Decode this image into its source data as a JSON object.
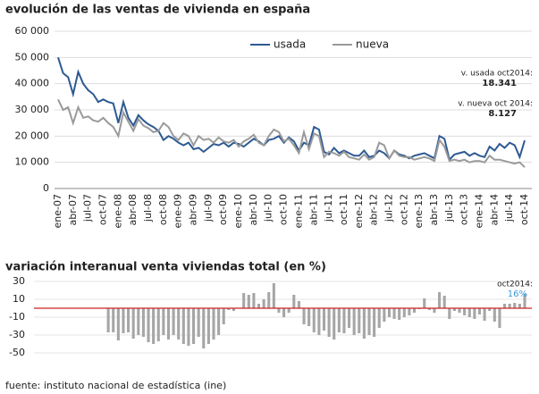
{
  "chart_data": [
    {
      "type": "line",
      "title": "evolución de las ventas de vivienda en españa",
      "categories": [
        "ene-07",
        null,
        null,
        "abr-07",
        null,
        null,
        "jul-07",
        null,
        null,
        "oct-07",
        null,
        null,
        "ene-08",
        null,
        null,
        "abr-08",
        null,
        null,
        "jul-08",
        null,
        null,
        "oct-08",
        null,
        null,
        "ene-09",
        null,
        null,
        "abr-09",
        null,
        null,
        "jul-09",
        null,
        null,
        "oct-09",
        null,
        null,
        "ene-10",
        null,
        null,
        "abr-10",
        null,
        null,
        "jul-10",
        null,
        null,
        "oct-10",
        null,
        null,
        "ene-11",
        null,
        null,
        "abr-11",
        null,
        null,
        "jul-11",
        null,
        null,
        "oct-11",
        null,
        null,
        "ene-12",
        null,
        null,
        "abr-12",
        null,
        null,
        "jul-12",
        null,
        null,
        "oct-12",
        null,
        null,
        "ene-13",
        null,
        null,
        "abr-13",
        null,
        null,
        "jul-13",
        null,
        null,
        "oct-13",
        null,
        null,
        "ene-14",
        null,
        null,
        "abr-14",
        null,
        null,
        "jul-14",
        null,
        null,
        "oct-14"
      ],
      "series": [
        {
          "name": "usada",
          "color": "#2e5a93",
          "values": [
            50000,
            44000,
            42500,
            36000,
            44500,
            40000,
            37500,
            36000,
            33000,
            34000,
            33000,
            32500,
            25000,
            33000,
            27000,
            24000,
            28000,
            26000,
            24500,
            23500,
            22000,
            18500,
            20000,
            19000,
            17500,
            16500,
            17500,
            15000,
            15500,
            14000,
            15500,
            17000,
            16500,
            17500,
            16000,
            17500,
            17000,
            16000,
            17500,
            19000,
            18000,
            16500,
            18500,
            19000,
            20000,
            17500,
            19500,
            18000,
            14500,
            17500,
            16500,
            23500,
            22500,
            14000,
            13000,
            15500,
            13500,
            14500,
            13500,
            12500,
            12500,
            14500,
            12000,
            12500,
            14500,
            13500,
            11500,
            14500,
            13000,
            12500,
            11500,
            12500,
            13000,
            13500,
            12500,
            11500,
            20000,
            19000,
            11000,
            13000,
            13500,
            14000,
            12500,
            13500,
            12500,
            12000,
            16000,
            14500,
            17000,
            15500,
            17500,
            16500,
            12000,
            18341
          ]
        },
        {
          "name": "nueva",
          "color": "#9a9a9a",
          "values": [
            34000,
            30000,
            31000,
            25000,
            31000,
            27000,
            27500,
            26000,
            25500,
            27000,
            25000,
            23500,
            20000,
            29000,
            25500,
            22000,
            26500,
            24000,
            23000,
            21500,
            22000,
            25000,
            23500,
            20000,
            18500,
            21000,
            20000,
            16500,
            20000,
            18500,
            19000,
            17500,
            19500,
            18000,
            17500,
            18500,
            16000,
            18000,
            19000,
            20500,
            17500,
            16500,
            20000,
            22500,
            21500,
            18000,
            19000,
            16500,
            13500,
            21500,
            15000,
            21000,
            20000,
            12000,
            14000,
            13500,
            12500,
            14000,
            12000,
            11500,
            11000,
            13000,
            11000,
            12000,
            17500,
            16500,
            11500,
            14500,
            12500,
            12000,
            12000,
            11000,
            11500,
            12000,
            11500,
            10500,
            18500,
            16000,
            10500,
            11000,
            10500,
            11000,
            10000,
            10500,
            10500,
            10000,
            12500,
            11000,
            11000,
            10500,
            10000,
            9500,
            10000,
            8127
          ]
        }
      ],
      "ylim": [
        0,
        60000
      ],
      "yticks": [
        {
          "value": 0,
          "label": "0"
        },
        {
          "value": 10000,
          "label": "10 000"
        },
        {
          "value": 20000,
          "label": "20 000"
        },
        {
          "value": 30000,
          "label": "30 000"
        },
        {
          "value": 40000,
          "label": "40 000"
        },
        {
          "value": 50000,
          "label": "50 000"
        },
        {
          "value": 60000,
          "label": "60 000"
        }
      ],
      "grid": true,
      "annotations": [
        {
          "label": "v. usada oct2014:",
          "value": "18.341"
        },
        {
          "label": "v. nueva oct 2014:",
          "value": "8.127"
        }
      ]
    },
    {
      "type": "bar",
      "title": "variación interanual venta viviendas total (en %)",
      "values": [
        -27,
        -27,
        -36,
        -28,
        -27,
        -34,
        -30,
        -32,
        -38,
        -40,
        -37,
        -30,
        -35,
        -30,
        -35,
        -40,
        -42,
        -40,
        -32,
        -45,
        -40,
        -35,
        -30,
        -18,
        -2,
        -3,
        0,
        17,
        15,
        17,
        5,
        10,
        18,
        28,
        -5,
        -10,
        -5,
        15,
        8,
        -18,
        -20,
        -27,
        -30,
        -25,
        -32,
        -35,
        -27,
        -28,
        -22,
        -30,
        -28,
        -34,
        -30,
        -32,
        -22,
        -15,
        -10,
        -12,
        -13,
        -10,
        -8,
        -5,
        -1,
        11,
        -2,
        -5,
        18,
        14,
        -12,
        -3,
        -5,
        -8,
        -10,
        -12,
        -7,
        -14,
        -3,
        -15,
        -22,
        5,
        5,
        6,
        5,
        16
      ],
      "color": "#a6a6a6",
      "zero_line_color": "#cc2222",
      "ylim": [
        -55,
        35
      ],
      "yticks": [
        30,
        10,
        -10,
        -30,
        -50
      ],
      "annotation": {
        "label": "oct2014:",
        "value": "16%",
        "color": "#3a9ad9"
      }
    }
  ],
  "footer": "fuente: instituto nacional de estadística (ine)"
}
